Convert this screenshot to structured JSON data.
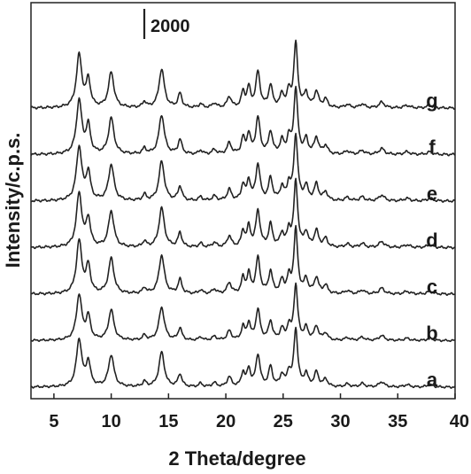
{
  "chart_data": {
    "type": "line",
    "title": "",
    "xlabel": "2 Theta/degree",
    "ylabel": "Intensity/c.p.s.",
    "xlim": [
      3,
      40
    ],
    "x_ticks": [
      5,
      10,
      15,
      20,
      25,
      30,
      35,
      40
    ],
    "y_ticks_shown": false,
    "grid": false,
    "stacked_offset": true,
    "scale_bar": {
      "label": "2000",
      "value": 2000
    },
    "peaks": [
      {
        "x": 7.2,
        "width": 0.28,
        "height": 0.82
      },
      {
        "x": 8.0,
        "width": 0.22,
        "height": 0.42
      },
      {
        "x": 10.0,
        "width": 0.28,
        "height": 0.55
      },
      {
        "x": 12.9,
        "width": 0.18,
        "height": 0.09
      },
      {
        "x": 14.4,
        "width": 0.28,
        "height": 0.6
      },
      {
        "x": 16.0,
        "width": 0.2,
        "height": 0.22
      },
      {
        "x": 17.8,
        "width": 0.18,
        "height": 0.06
      },
      {
        "x": 19.0,
        "width": 0.22,
        "height": 0.07
      },
      {
        "x": 20.3,
        "width": 0.22,
        "height": 0.17
      },
      {
        "x": 21.5,
        "width": 0.18,
        "height": 0.24
      },
      {
        "x": 22.0,
        "width": 0.18,
        "height": 0.3
      },
      {
        "x": 22.8,
        "width": 0.22,
        "height": 0.55
      },
      {
        "x": 23.9,
        "width": 0.2,
        "height": 0.34
      },
      {
        "x": 24.9,
        "width": 0.2,
        "height": 0.2
      },
      {
        "x": 25.5,
        "width": 0.18,
        "height": 0.24
      },
      {
        "x": 26.1,
        "width": 0.2,
        "height": 1.0
      },
      {
        "x": 27.0,
        "width": 0.2,
        "height": 0.22
      },
      {
        "x": 27.9,
        "width": 0.22,
        "height": 0.25
      },
      {
        "x": 28.7,
        "width": 0.22,
        "height": 0.13
      },
      {
        "x": 30.6,
        "width": 0.25,
        "height": 0.05
      },
      {
        "x": 31.9,
        "width": 0.25,
        "height": 0.06
      },
      {
        "x": 33.6,
        "width": 0.28,
        "height": 0.09
      },
      {
        "x": 35.8,
        "width": 0.3,
        "height": 0.04
      },
      {
        "x": 37.8,
        "width": 0.3,
        "height": 0.04
      }
    ],
    "series": [
      {
        "name": "a",
        "scale": 0.88
      },
      {
        "name": "b",
        "scale": 0.84
      },
      {
        "name": "c",
        "scale": 0.98
      },
      {
        "name": "d",
        "scale": 1.0
      },
      {
        "name": "e",
        "scale": 1.0
      },
      {
        "name": "f",
        "scale": 1.0
      },
      {
        "name": "g",
        "scale": 0.98
      }
    ]
  }
}
